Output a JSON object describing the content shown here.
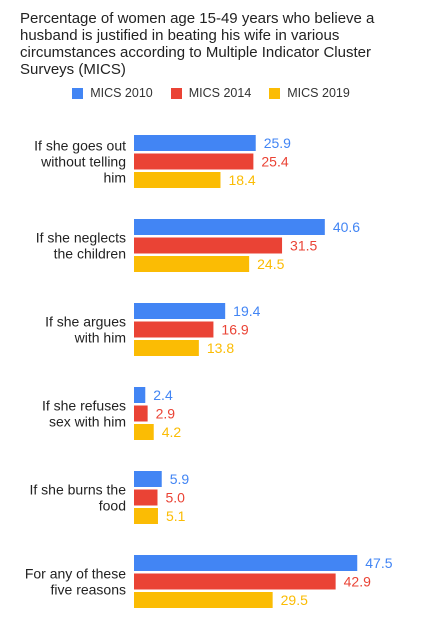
{
  "chart_data": {
    "type": "bar",
    "orientation": "horizontal",
    "title": "Percentage of women age 15-49 years who believe a husband is justified in beating his wife in various circumstances according to Multiple Indicator Cluster Surveys (MICS)",
    "categories": [
      [
        "If she goes out",
        "without telling",
        "him"
      ],
      [
        "If she neglects",
        "the children"
      ],
      [
        "If she argues",
        "with him"
      ],
      [
        "If she refuses",
        "sex with him"
      ],
      [
        "If she burns the",
        "food"
      ],
      [
        "For any of these",
        "five reasons"
      ]
    ],
    "series": [
      {
        "name": "MICS 2010",
        "color": "#4285f4",
        "values": [
          25.9,
          40.6,
          19.4,
          2.4,
          5.9,
          47.5
        ]
      },
      {
        "name": "MICS 2014",
        "color": "#ea4335",
        "values": [
          25.4,
          31.5,
          16.9,
          2.9,
          5.0,
          42.9
        ]
      },
      {
        "name": "MICS 2019",
        "color": "#fbbc04",
        "values": [
          18.4,
          24.5,
          13.8,
          4.2,
          5.1,
          29.5
        ]
      }
    ],
    "xlim": [
      0,
      50
    ],
    "legend_position": "top-center",
    "grid": false
  }
}
